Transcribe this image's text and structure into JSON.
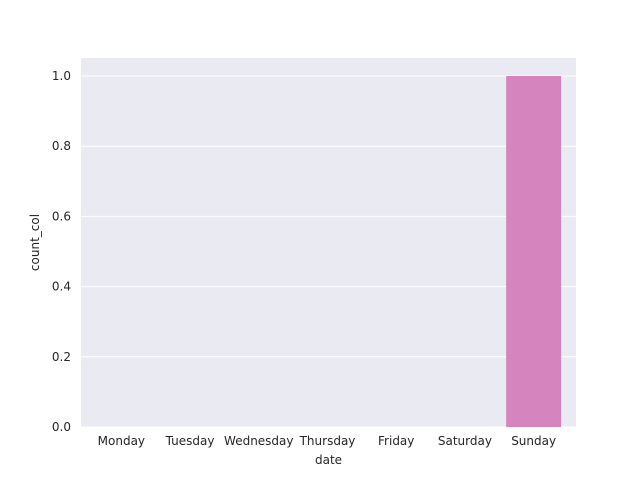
{
  "chart_data": {
    "type": "bar",
    "title": "",
    "xlabel": "date",
    "ylabel": "count_col",
    "categories": [
      "Monday",
      "Tuesday",
      "Wednesday",
      "Thursday",
      "Friday",
      "Saturday",
      "Sunday"
    ],
    "values": [
      0,
      0,
      0,
      0,
      0,
      0,
      1
    ],
    "ylim": [
      0,
      1.0
    ],
    "yticks": [
      "0.0",
      "0.2",
      "0.4",
      "0.6",
      "0.8",
      "1.0"
    ],
    "ytick_values": [
      0,
      0.2,
      0.4,
      0.6,
      0.8,
      1.0
    ],
    "grid": true,
    "legend": "none",
    "colors": {
      "plot_background": "#eaeaf2",
      "gridline": "#ffffff",
      "bars": [
        "#3274a1",
        "#e1812c",
        "#3a923a",
        "#c03d3e",
        "#9372b2",
        "#845b53",
        "#d684bd"
      ]
    }
  }
}
